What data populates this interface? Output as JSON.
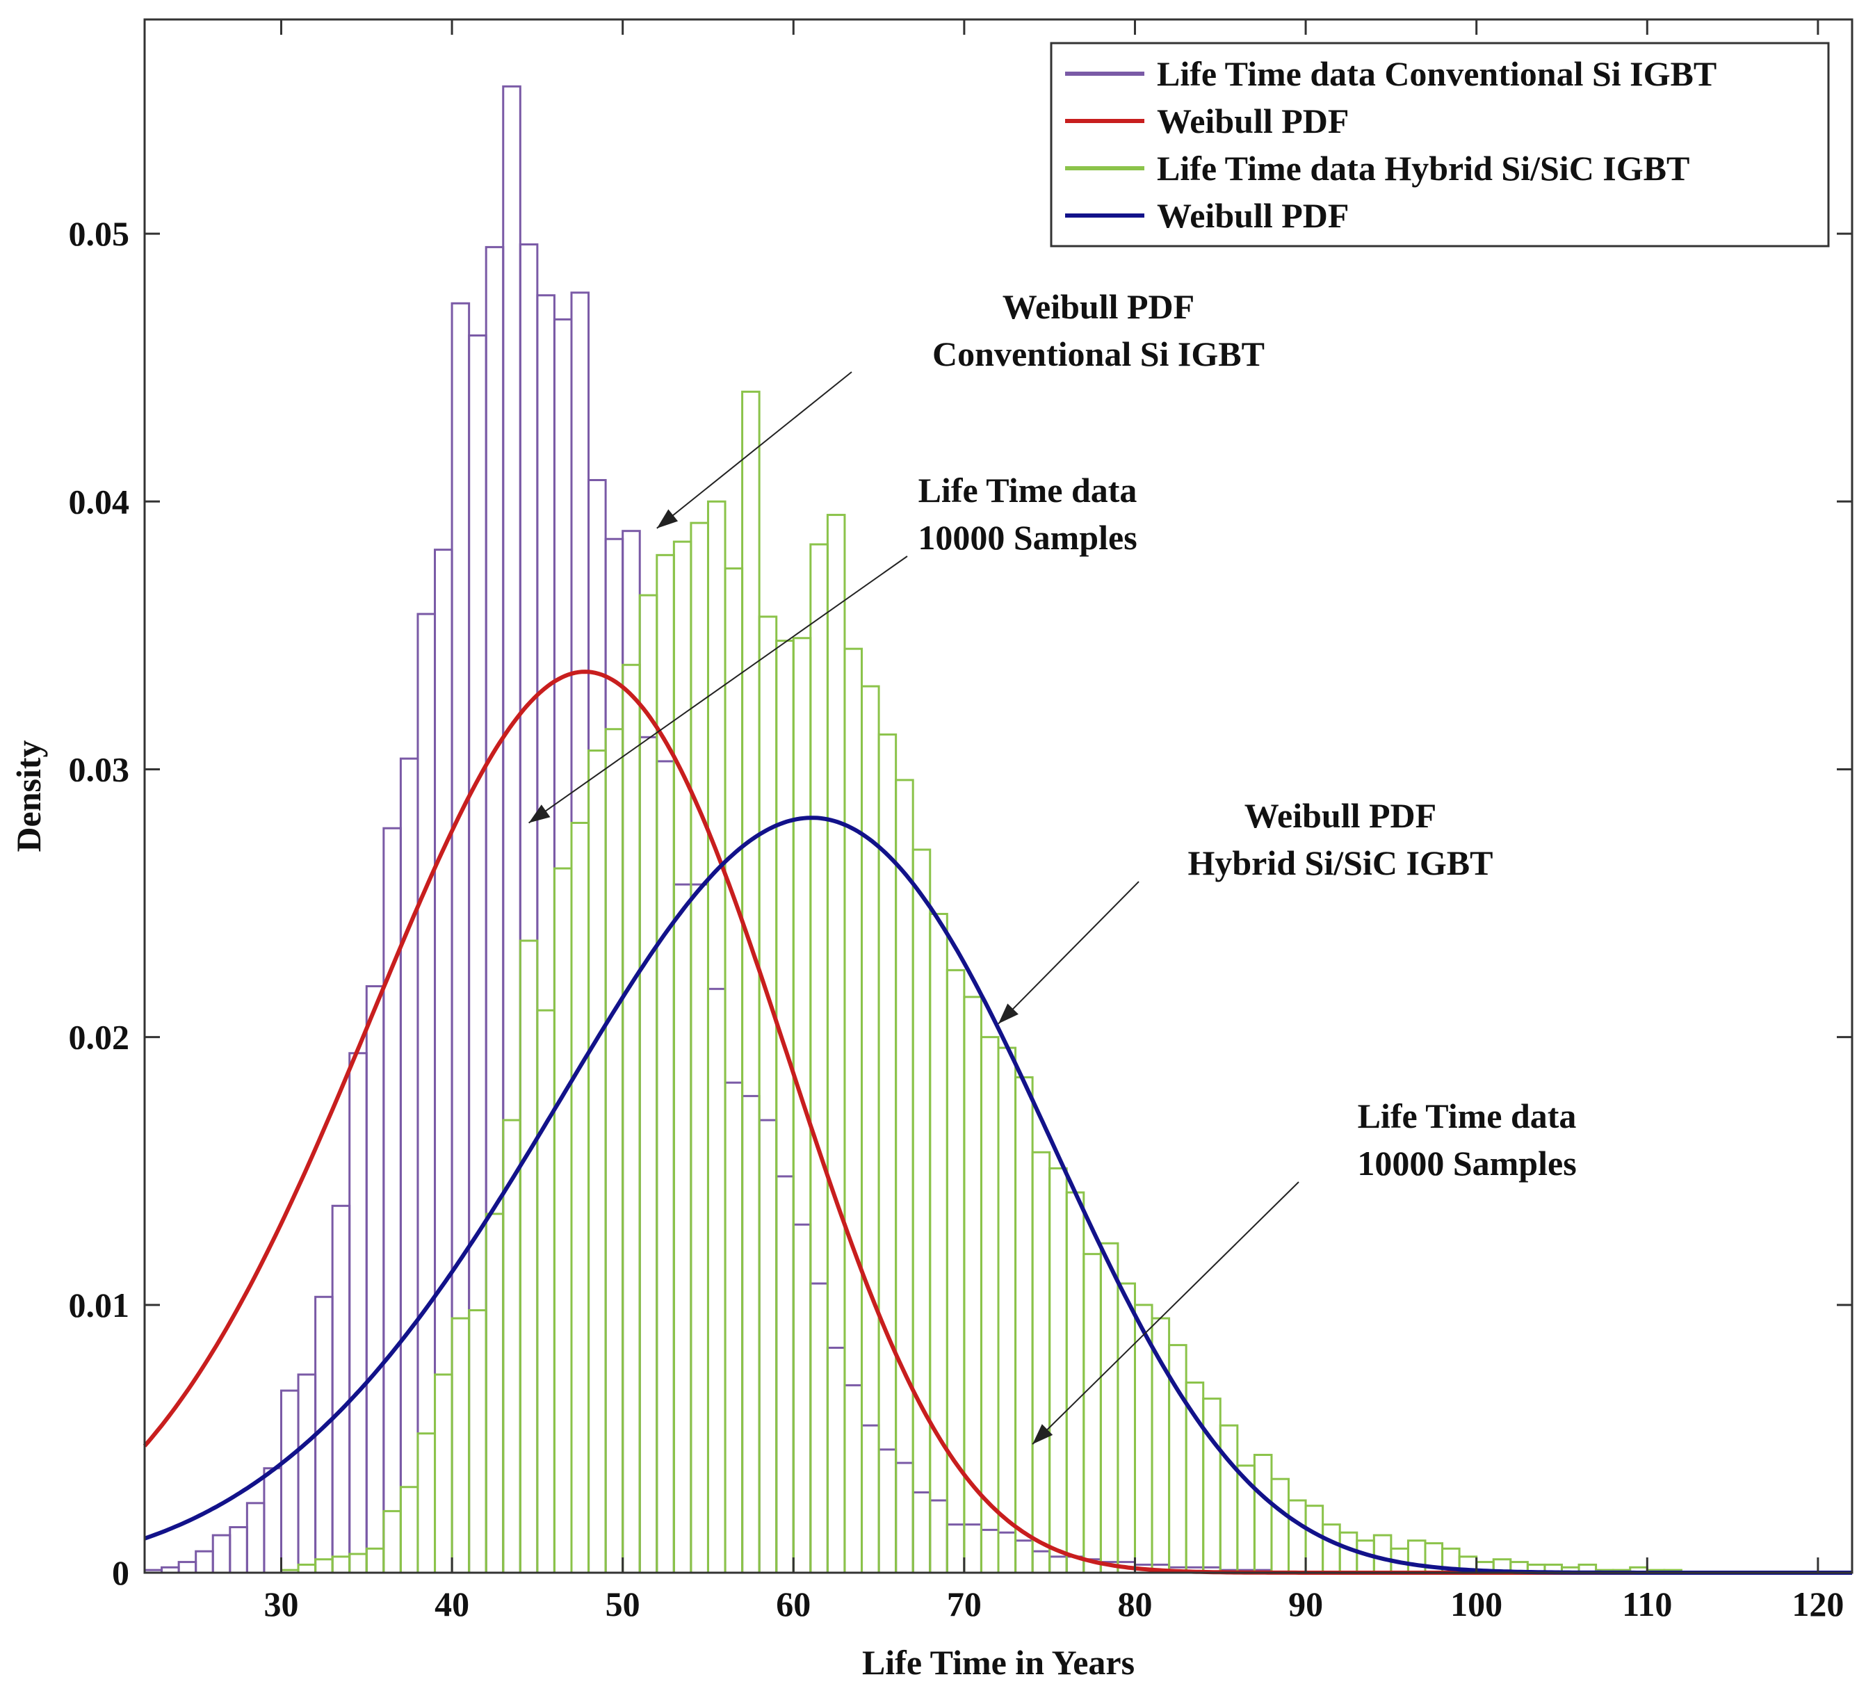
{
  "chart_data": {
    "type": "histogram+line",
    "xlabel": "Life Time in Years",
    "ylabel": "Density",
    "xlim": [
      22,
      122
    ],
    "ylim": [
      0,
      0.058
    ],
    "xticks": [
      30,
      40,
      50,
      60,
      70,
      80,
      90,
      100,
      110,
      120
    ],
    "yticks": [
      0,
      0.01,
      0.02,
      0.03,
      0.04,
      0.05
    ],
    "ytick_labels": [
      "0",
      "0.01",
      "0.02",
      "0.03",
      "0.04",
      "0.05"
    ],
    "legend_position": "top-right",
    "legend": [
      {
        "label": "Life Time data Conventional Si IGBT",
        "color": "#7a5aa6"
      },
      {
        "label": "Weibull PDF",
        "color": "#c81e1e"
      },
      {
        "label": "Life Time data Hybrid Si/SiC IGBT",
        "color": "#8bc34a"
      },
      {
        "label": "Weibull PDF",
        "color": "#12128a"
      }
    ],
    "histograms": [
      {
        "name": "Life Time data Conventional Si IGBT",
        "color": "#7a5aa6",
        "bin_start": 22,
        "bin_width": 1,
        "density": [
          0.0001,
          0.0002,
          0.0004,
          0.0008,
          0.0014,
          0.0017,
          0.0026,
          0.0039,
          0.0068,
          0.0074,
          0.0103,
          0.0137,
          0.0194,
          0.0219,
          0.0278,
          0.0304,
          0.0358,
          0.0382,
          0.0474,
          0.0462,
          0.0495,
          0.0555,
          0.0496,
          0.0477,
          0.0468,
          0.0478,
          0.0408,
          0.0386,
          0.0389,
          0.0312,
          0.0303,
          0.0257,
          0.0257,
          0.0218,
          0.0183,
          0.0178,
          0.0169,
          0.0148,
          0.013,
          0.0108,
          0.0084,
          0.007,
          0.0055,
          0.0046,
          0.0041,
          0.003,
          0.0027,
          0.0018,
          0.0018,
          0.0016,
          0.0015,
          0.0012,
          0.0008,
          0.0006,
          0.0006,
          0.0005,
          0.0004,
          0.0004,
          0.0003,
          0.0003,
          0.0002,
          0.0002,
          0.0002,
          0.0001,
          0.0001,
          0.0001
        ]
      },
      {
        "name": "Life Time data Hybrid Si/SiC IGBT",
        "color": "#8bc34a",
        "bin_start": 22,
        "bin_width": 1,
        "density": [
          0,
          0,
          0,
          0,
          0,
          0,
          0,
          0,
          0.0001,
          0.0003,
          0.0005,
          0.0006,
          0.0007,
          0.0009,
          0.0023,
          0.0032,
          0.0052,
          0.0074,
          0.0095,
          0.0098,
          0.0134,
          0.0169,
          0.0236,
          0.021,
          0.0263,
          0.028,
          0.0307,
          0.0315,
          0.0339,
          0.0365,
          0.038,
          0.0385,
          0.0392,
          0.04,
          0.0375,
          0.0441,
          0.0357,
          0.0348,
          0.0349,
          0.0384,
          0.0395,
          0.0345,
          0.0331,
          0.0313,
          0.0296,
          0.027,
          0.0246,
          0.0225,
          0.0215,
          0.02,
          0.0196,
          0.0185,
          0.0157,
          0.0151,
          0.0142,
          0.0119,
          0.0123,
          0.0108,
          0.01,
          0.0095,
          0.0085,
          0.0071,
          0.0065,
          0.0055,
          0.004,
          0.0044,
          0.0035,
          0.0027,
          0.0025,
          0.0018,
          0.0015,
          0.0012,
          0.0014,
          0.0009,
          0.0012,
          0.0011,
          0.0009,
          0.0006,
          0.0004,
          0.0005,
          0.0004,
          0.0003,
          0.0003,
          0.0002,
          0.0003,
          0.0001,
          0.0001,
          0.0002,
          0.0001,
          0.0001
        ]
      }
    ],
    "curves": [
      {
        "name": "Weibull PDF",
        "color": "#c81e1e",
        "distribution": "weibull",
        "shape": 4.5,
        "scale": 50.54,
        "x_range": [
          22,
          122
        ]
      },
      {
        "name": "Weibull PDF",
        "color": "#12128a",
        "distribution": "weibull",
        "shape": 4.8,
        "scale": 64.12,
        "x_range": [
          22,
          122
        ]
      }
    ],
    "annotations": [
      {
        "lines": [
          "Weibull PDF",
          "Conventional Si IGBT"
        ],
        "arrow_to": [
          52,
          0.039
        ]
      },
      {
        "lines": [
          "Life Time data",
          "10000 Samples"
        ],
        "arrow_to": [
          44.5,
          0.028
        ]
      },
      {
        "lines": [
          "Weibull PDF",
          "Hybrid Si/SiC IGBT"
        ],
        "arrow_to": [
          72,
          0.0205
        ]
      },
      {
        "lines": [
          "Life Time data",
          "10000 Samples"
        ],
        "arrow_to": [
          74,
          0.0048
        ]
      }
    ]
  }
}
